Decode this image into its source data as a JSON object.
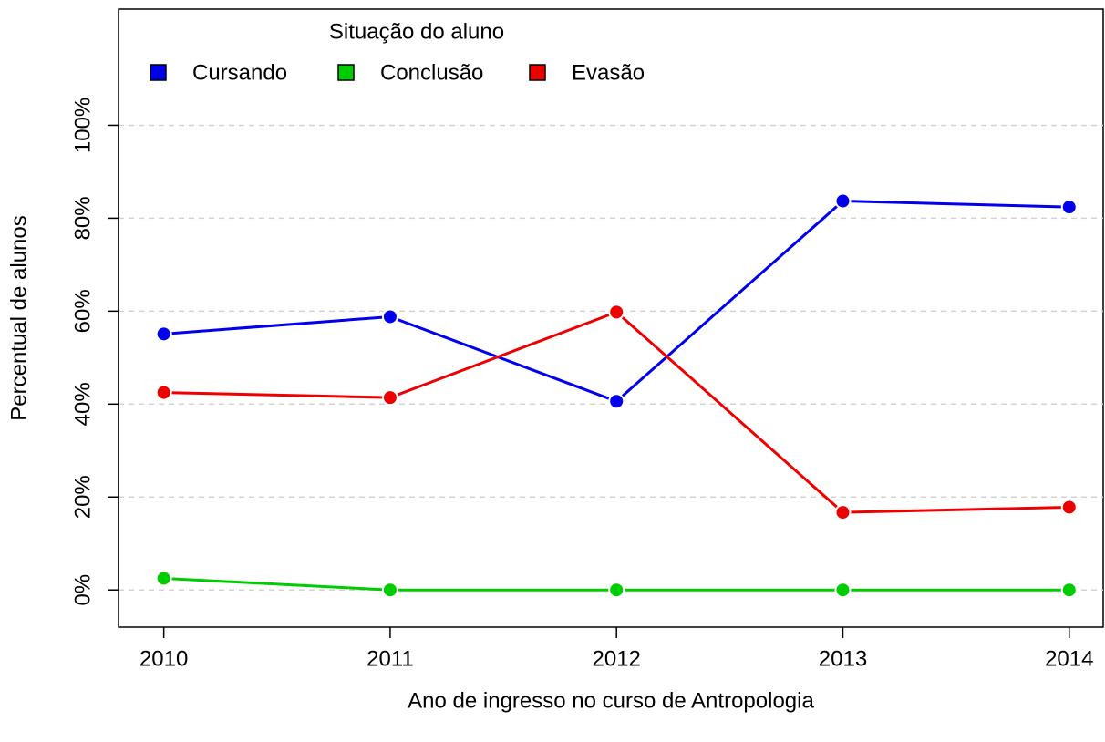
{
  "chart_data": {
    "type": "line",
    "x_label": "Ano de ingresso no curso de Antropologia",
    "y_label": "Percentual de alunos",
    "legend_title": "Situação do aluno",
    "legend_position": "top",
    "grid": true,
    "x": [
      2010,
      2011,
      2012,
      2013,
      2014
    ],
    "xlim": [
      2009.8,
      2014.15
    ],
    "xticks": [
      2010,
      2011,
      2012,
      2013,
      2014
    ],
    "ylim": [
      -8,
      125
    ],
    "yticks": [
      {
        "value": 0,
        "label": "0%"
      },
      {
        "value": 20,
        "label": "20%"
      },
      {
        "value": 40,
        "label": "40%"
      },
      {
        "value": 60,
        "label": "60%"
      },
      {
        "value": 80,
        "label": "80%"
      },
      {
        "value": 100,
        "label": "100%"
      }
    ],
    "series": [
      {
        "name": "Cursando",
        "color": "#0000ee",
        "values": [
          55.1,
          58.8,
          40.6,
          83.7,
          82.4
        ]
      },
      {
        "name": "Conclusão",
        "color": "#00cd00",
        "values": [
          2.5,
          0,
          0,
          0,
          0
        ]
      },
      {
        "name": "Evasão",
        "color": "#ee0000",
        "values": [
          42.5,
          41.4,
          59.8,
          16.7,
          17.8
        ]
      }
    ]
  }
}
